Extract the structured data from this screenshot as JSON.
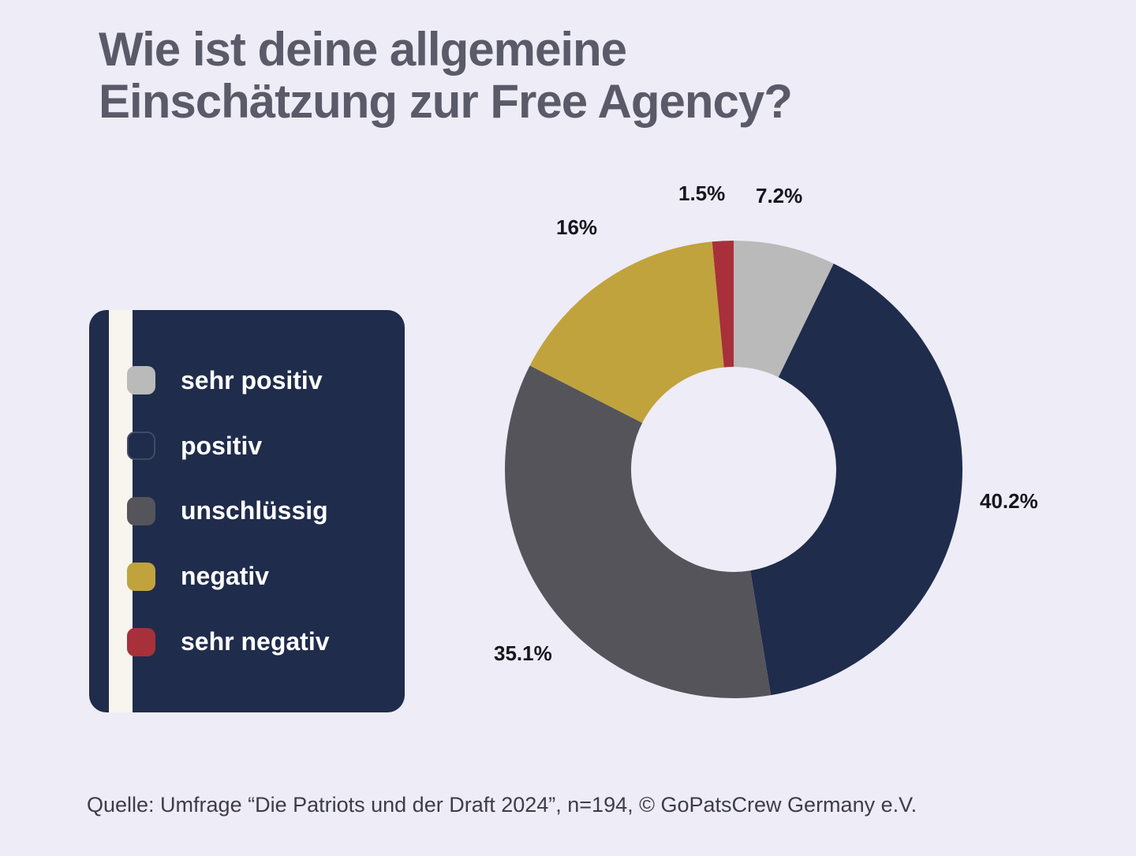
{
  "title": "Wie ist deine allgemeine Einschätzung zur Free Agency?",
  "background_color": "#edecf7",
  "title_color": "#5a5a69",
  "title_fontsize": 60,
  "title_fontweight": 800,
  "legend": {
    "card_color": "#1f2c4b",
    "card_radius": 22,
    "stripe_color": "#f7f5ee",
    "label_color": "#ffffff",
    "label_fontsize": 32,
    "swatch_radius": 10,
    "items": [
      {
        "label": "sehr positiv",
        "color": "#b9bab9"
      },
      {
        "label": "positiv",
        "color": "#1f2c4b"
      },
      {
        "label": "unschlüssig",
        "color": "#55545a"
      },
      {
        "label": "negativ",
        "color": "#c1a33d"
      },
      {
        "label": "sehr negativ",
        "color": "#a8303a"
      }
    ]
  },
  "chart": {
    "type": "donut",
    "start_angle_deg": 0,
    "direction": "clockwise",
    "outer_radius": 290,
    "inner_radius": 130,
    "center_fill": "#edecf7",
    "label_fontsize": 26,
    "label_fontweight": 800,
    "label_color": "#16151c",
    "slices": [
      {
        "key": "sehr_positiv",
        "value": 7.2,
        "display": "7.2%",
        "color": "#b9bab9"
      },
      {
        "key": "positiv",
        "value": 40.2,
        "display": "40.2%",
        "color": "#1f2c4b"
      },
      {
        "key": "unschluessig",
        "value": 35.1,
        "display": "35.1%",
        "color": "#55545a"
      },
      {
        "key": "negativ",
        "value": 16.0,
        "display": "16%",
        "color": "#c1a33d"
      },
      {
        "key": "sehr_negativ",
        "value": 1.5,
        "display": "1.5%",
        "color": "#a8303a"
      }
    ]
  },
  "source": "Quelle: Umfrage “Die Patriots und der Draft 2024”, n=194, © GoPatsCrew Germany e.V."
}
